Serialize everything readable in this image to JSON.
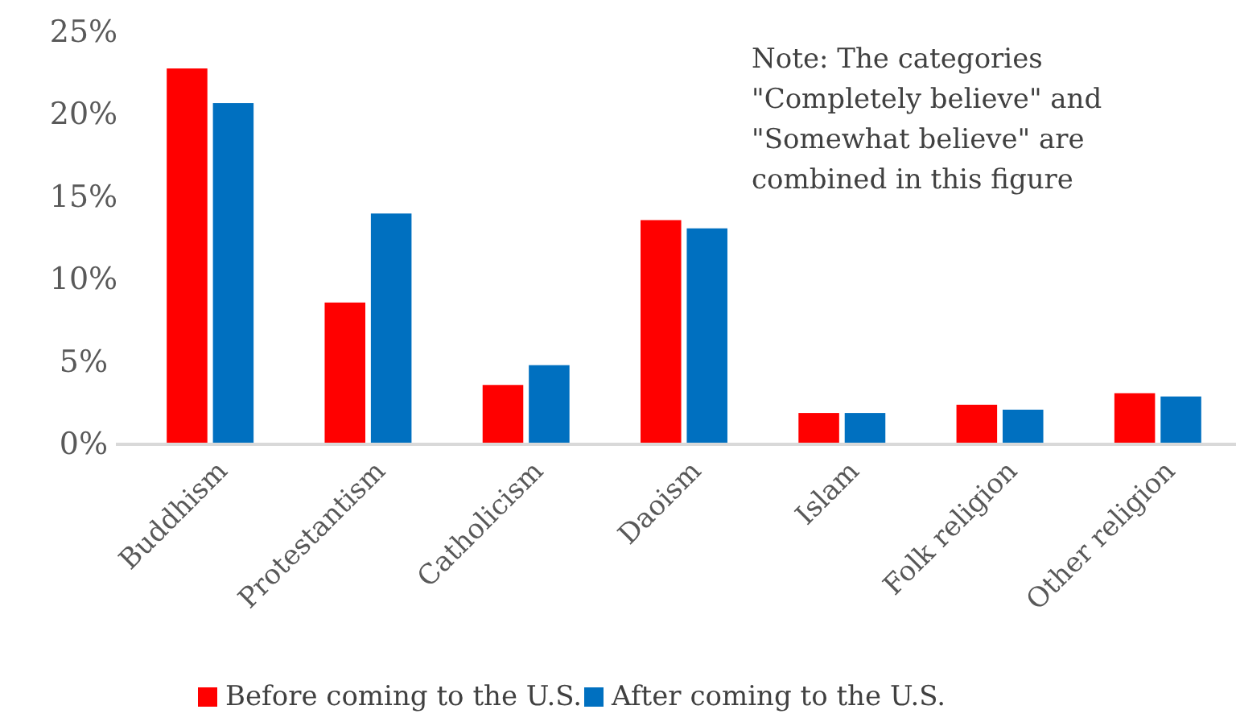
{
  "chart_data": {
    "type": "bar",
    "categories": [
      "Buddhism",
      "Protestantism",
      "Catholicism",
      "Daoism",
      "Islam",
      "Folk religion",
      "Other religion"
    ],
    "series": [
      {
        "name": "Before coming to the U.S.",
        "color": "#ff0000",
        "values": [
          22.8,
          8.6,
          3.6,
          13.6,
          1.9,
          2.4,
          3.1
        ]
      },
      {
        "name": "After coming to the U.S.",
        "color": "#0070c0",
        "values": [
          20.7,
          14.0,
          4.8,
          13.1,
          1.9,
          2.1,
          2.9
        ]
      }
    ],
    "ylim": [
      0,
      25
    ],
    "yticks": [
      {
        "value": 0,
        "label": "0%"
      },
      {
        "value": 5,
        "label": "5%"
      },
      {
        "value": 10,
        "label": "10%"
      },
      {
        "value": 15,
        "label": "15%"
      },
      {
        "value": 20,
        "label": "20%"
      },
      {
        "value": 25,
        "label": "25%"
      }
    ],
    "grid": false,
    "legend": "bottom",
    "annotations": [
      "Note: The categories \"Completely believe\" and \"Somewhat believe\" are combined in this figure"
    ]
  }
}
